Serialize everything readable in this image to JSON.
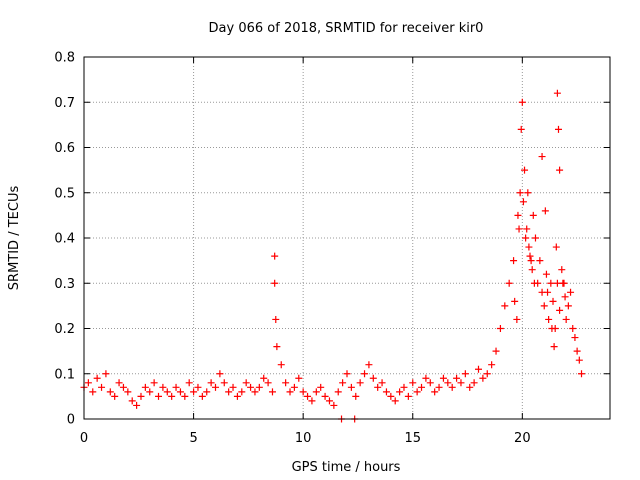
{
  "chart_data": {
    "type": "scatter",
    "title": "Day 066 of 2018, SRMTID for receiver kir0",
    "xlabel": "GPS time / hours",
    "ylabel": "SRMTID / TECUs",
    "xlim": [
      0,
      24
    ],
    "ylim": [
      0,
      0.8
    ],
    "grid": true,
    "marker": "+",
    "x_ticks": [
      0,
      5,
      10,
      15,
      20
    ],
    "x_tick_labels": [
      "0",
      "5",
      "10",
      "15",
      "20"
    ],
    "y_ticks": [
      0,
      0.1,
      0.2,
      0.3,
      0.4,
      0.5,
      0.6,
      0.7,
      0.8
    ],
    "y_tick_labels": [
      "0",
      "0.1",
      "0.2",
      "0.3",
      "0.4",
      "0.5",
      "0.6",
      "0.7",
      "0.8"
    ],
    "series": [
      {
        "name": "kir0",
        "color": "#ff0000",
        "x": [
          0.0,
          0.2,
          0.4,
          0.6,
          0.8,
          1.0,
          1.2,
          1.4,
          1.6,
          1.8,
          2.0,
          2.2,
          2.4,
          2.6,
          2.8,
          3.0,
          3.2,
          3.4,
          3.6,
          3.8,
          4.0,
          4.2,
          4.4,
          4.6,
          4.8,
          5.0,
          5.2,
          5.4,
          5.6,
          5.8,
          6.0,
          6.2,
          6.4,
          6.6,
          6.8,
          7.0,
          7.2,
          7.4,
          7.6,
          7.8,
          8.0,
          8.2,
          8.4,
          8.6,
          8.7,
          8.7,
          8.75,
          8.8,
          9.0,
          9.2,
          9.4,
          9.6,
          9.8,
          10.0,
          10.2,
          10.4,
          10.6,
          10.8,
          11.0,
          11.2,
          11.4,
          11.6,
          11.75,
          11.8,
          12.0,
          12.2,
          12.35,
          12.4,
          12.6,
          12.8,
          13.0,
          13.2,
          13.4,
          13.6,
          13.8,
          14.0,
          14.2,
          14.4,
          14.6,
          14.8,
          15.0,
          15.2,
          15.4,
          15.6,
          15.8,
          16.0,
          16.2,
          16.4,
          16.6,
          16.8,
          17.0,
          17.2,
          17.4,
          17.6,
          17.8,
          18.0,
          18.2,
          18.4,
          18.6,
          18.8,
          19.0,
          19.2,
          19.4,
          19.6,
          19.8,
          19.9,
          20.0,
          20.1,
          20.2,
          20.3,
          20.4,
          20.5,
          20.6,
          20.7,
          20.8,
          20.9,
          21.0,
          21.1,
          21.2,
          21.3,
          21.4,
          21.5,
          21.6,
          21.65,
          21.7,
          21.8,
          21.9,
          22.0,
          22.1,
          22.2,
          22.3,
          22.4,
          22.5,
          22.6,
          22.7,
          19.95,
          20.05,
          19.85,
          20.15,
          20.25,
          20.35,
          20.45,
          20.55,
          21.55,
          21.6,
          21.7,
          20.9,
          21.05,
          21.15,
          21.35,
          21.45,
          19.75,
          19.65,
          21.85,
          21.95
        ],
        "y": [
          0.07,
          0.08,
          0.06,
          0.09,
          0.07,
          0.1,
          0.06,
          0.05,
          0.08,
          0.07,
          0.06,
          0.04,
          0.03,
          0.05,
          0.07,
          0.06,
          0.08,
          0.05,
          0.07,
          0.06,
          0.05,
          0.07,
          0.06,
          0.05,
          0.08,
          0.06,
          0.07,
          0.05,
          0.06,
          0.08,
          0.07,
          0.1,
          0.08,
          0.06,
          0.07,
          0.05,
          0.06,
          0.08,
          0.07,
          0.06,
          0.07,
          0.09,
          0.08,
          0.06,
          0.36,
          0.3,
          0.22,
          0.16,
          0.12,
          0.08,
          0.06,
          0.07,
          0.09,
          0.06,
          0.05,
          0.04,
          0.06,
          0.07,
          0.05,
          0.04,
          0.03,
          0.06,
          0.0,
          0.08,
          0.1,
          0.07,
          0.0,
          0.05,
          0.08,
          0.1,
          0.12,
          0.09,
          0.07,
          0.08,
          0.06,
          0.05,
          0.04,
          0.06,
          0.07,
          0.05,
          0.08,
          0.06,
          0.07,
          0.09,
          0.08,
          0.06,
          0.07,
          0.09,
          0.08,
          0.07,
          0.09,
          0.08,
          0.1,
          0.07,
          0.08,
          0.11,
          0.09,
          0.1,
          0.12,
          0.15,
          0.2,
          0.25,
          0.3,
          0.35,
          0.45,
          0.5,
          0.7,
          0.55,
          0.42,
          0.38,
          0.35,
          0.45,
          0.4,
          0.3,
          0.35,
          0.28,
          0.25,
          0.32,
          0.22,
          0.3,
          0.26,
          0.2,
          0.72,
          0.64,
          0.55,
          0.33,
          0.3,
          0.22,
          0.25,
          0.28,
          0.2,
          0.18,
          0.15,
          0.13,
          0.1,
          0.64,
          0.48,
          0.42,
          0.4,
          0.5,
          0.36,
          0.33,
          0.3,
          0.38,
          0.3,
          0.24,
          0.58,
          0.46,
          0.28,
          0.2,
          0.16,
          0.22,
          0.26,
          0.3,
          0.27
        ]
      }
    ]
  }
}
